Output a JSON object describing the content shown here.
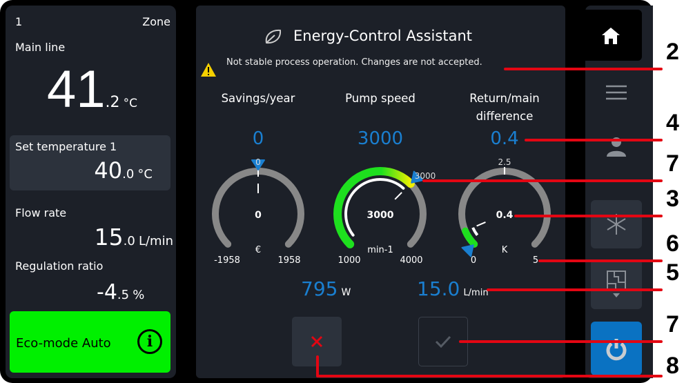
{
  "zone": {
    "number": "1",
    "label": "Zone"
  },
  "main_line": {
    "label": "Main line",
    "int": "41",
    "dec": ".2",
    "unit": "°C"
  },
  "set_temp": {
    "label": "Set temperature 1",
    "int": "40",
    "dec": ".0",
    "unit": "°C"
  },
  "flow_rate": {
    "label": "Flow rate",
    "int": "15",
    "dec": ".0",
    "unit": "L/min"
  },
  "regulation": {
    "label": "Regulation ratio",
    "int": "-4",
    "dec": ".5",
    "unit": "%"
  },
  "eco": {
    "label": "Eco-mode Auto",
    "icon": "info-icon",
    "color": "#00f000"
  },
  "assistant": {
    "title": "Energy-Control Assistant",
    "icon": "leaf-icon",
    "warning": "Not stable process operation. Changes are not accepted."
  },
  "gauges": [
    {
      "title": "Savings/year",
      "value": "0",
      "center": "0",
      "unit": "€",
      "min": -1958,
      "max": 1958,
      "min_label": "-1958",
      "max_label": "1958",
      "top_label": "0",
      "val": 0,
      "setpoint": 0
    },
    {
      "title": "Pump speed",
      "value": "3000",
      "center": "3000",
      "unit": "min-1",
      "min": 1000,
      "max": 4000,
      "min_label": "1000",
      "max_label": "4000",
      "top_label": "3000",
      "val": 3000,
      "setpoint": 3000
    },
    {
      "title": "Return/main difference",
      "value": "0.4",
      "center": "0.4",
      "unit": "K",
      "min": 0,
      "max": 5,
      "min_label": "0",
      "max_label": "5",
      "top_label": "2.5",
      "val": 0.4,
      "setpoint": 0
    }
  ],
  "power": {
    "value": "795",
    "unit": "W"
  },
  "flow": {
    "value": "15.0",
    "unit": "L/min"
  },
  "buttons": {
    "cancel": "cancel-icon",
    "confirm": "check-icon"
  },
  "nav": [
    "home-icon",
    "menu-icon",
    "user-icon",
    "snowflake-icon",
    "floorplan-icon",
    "power-icon"
  ],
  "callouts": [
    "2",
    "4",
    "7",
    "3",
    "6",
    "5",
    "7",
    "8"
  ],
  "colors": {
    "accent": "#1a7fd0",
    "eco": "#00f000",
    "cancel": "#e30613",
    "callout": "#e30613"
  }
}
